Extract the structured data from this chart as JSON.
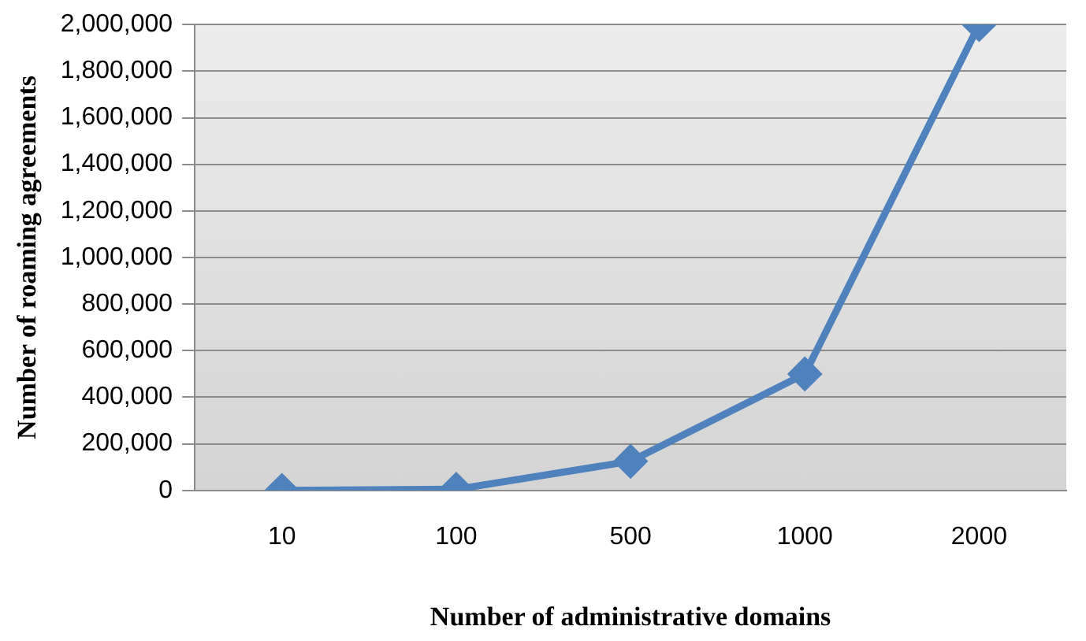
{
  "chart_data": {
    "type": "line",
    "xlabel": "Number of administrative domains",
    "ylabel": "Number of roaming agreements",
    "categories": [
      "10",
      "100",
      "500",
      "1000",
      "2000"
    ],
    "series": [
      {
        "color": "#4f81bd",
        "values": [
          0,
          5000,
          125000,
          500000,
          2000000
        ]
      }
    ],
    "ylim": [
      0,
      2000000
    ],
    "yticks": [
      0,
      {
        "value": 200000,
        "label": "200,000"
      },
      {
        "value": 400000,
        "label": "400,000"
      },
      {
        "value": 600000,
        "label": "600,000"
      },
      {
        "value": 800000,
        "label": "800,000"
      },
      {
        "value": 1000000,
        "label": "1,000,000"
      },
      {
        "value": 1200000,
        "label": "1,200,000"
      },
      {
        "value": 1400000,
        "label": "1,400,000"
      },
      {
        "value": 1600000,
        "label": "1,600,000"
      },
      {
        "value": 1800000,
        "label": "1,800,000"
      },
      {
        "value": 2000000,
        "label": "2,000,000"
      }
    ],
    "grid": "y",
    "legend": false,
    "marker": "diamond",
    "line_style": "solid"
  }
}
